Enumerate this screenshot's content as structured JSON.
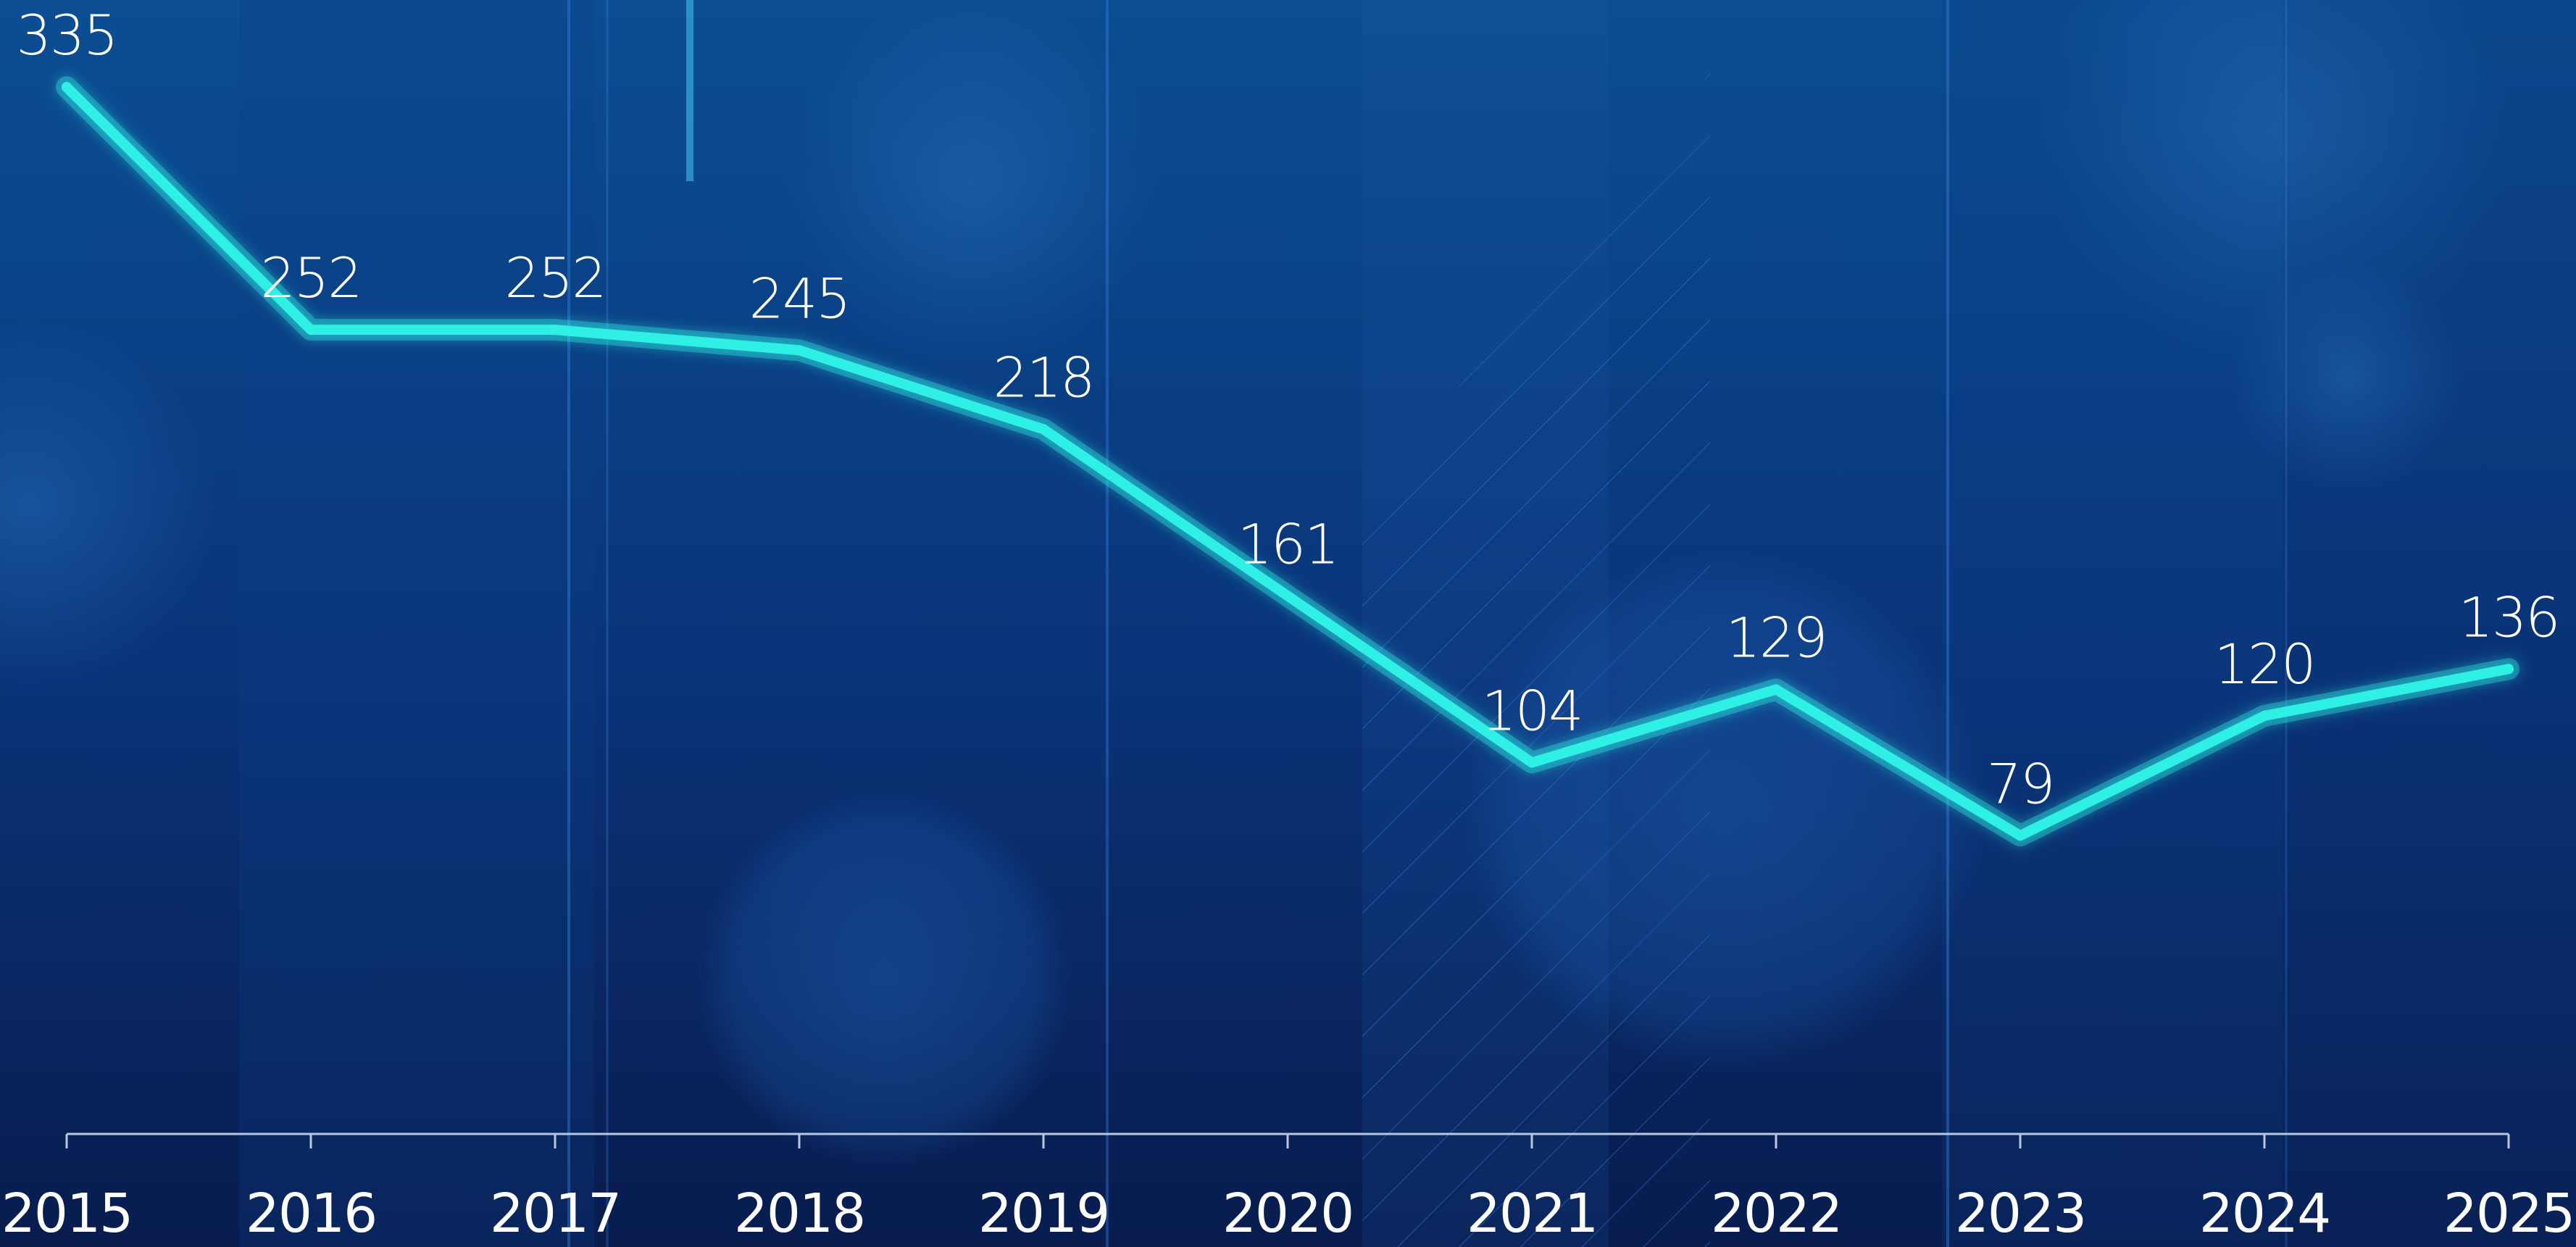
{
  "chart_data": {
    "type": "line",
    "categories": [
      "2015",
      "2016",
      "2017",
      "2018",
      "2019",
      "2020",
      "2021",
      "2022",
      "2023",
      "2024",
      "2025"
    ],
    "values": [
      335,
      252,
      252,
      245,
      218,
      161,
      104,
      129,
      79,
      120,
      136
    ],
    "title": "",
    "xlabel": "",
    "ylabel": "",
    "ylim": [
      0,
      360
    ],
    "grid": false,
    "legend": "none",
    "data_labels": true,
    "colors": {
      "line": "#2ef0e4",
      "axis": "#b9c6de",
      "background_top": "#0b4e93",
      "background_bottom": "#081c4e",
      "text": "#ffffff"
    }
  }
}
